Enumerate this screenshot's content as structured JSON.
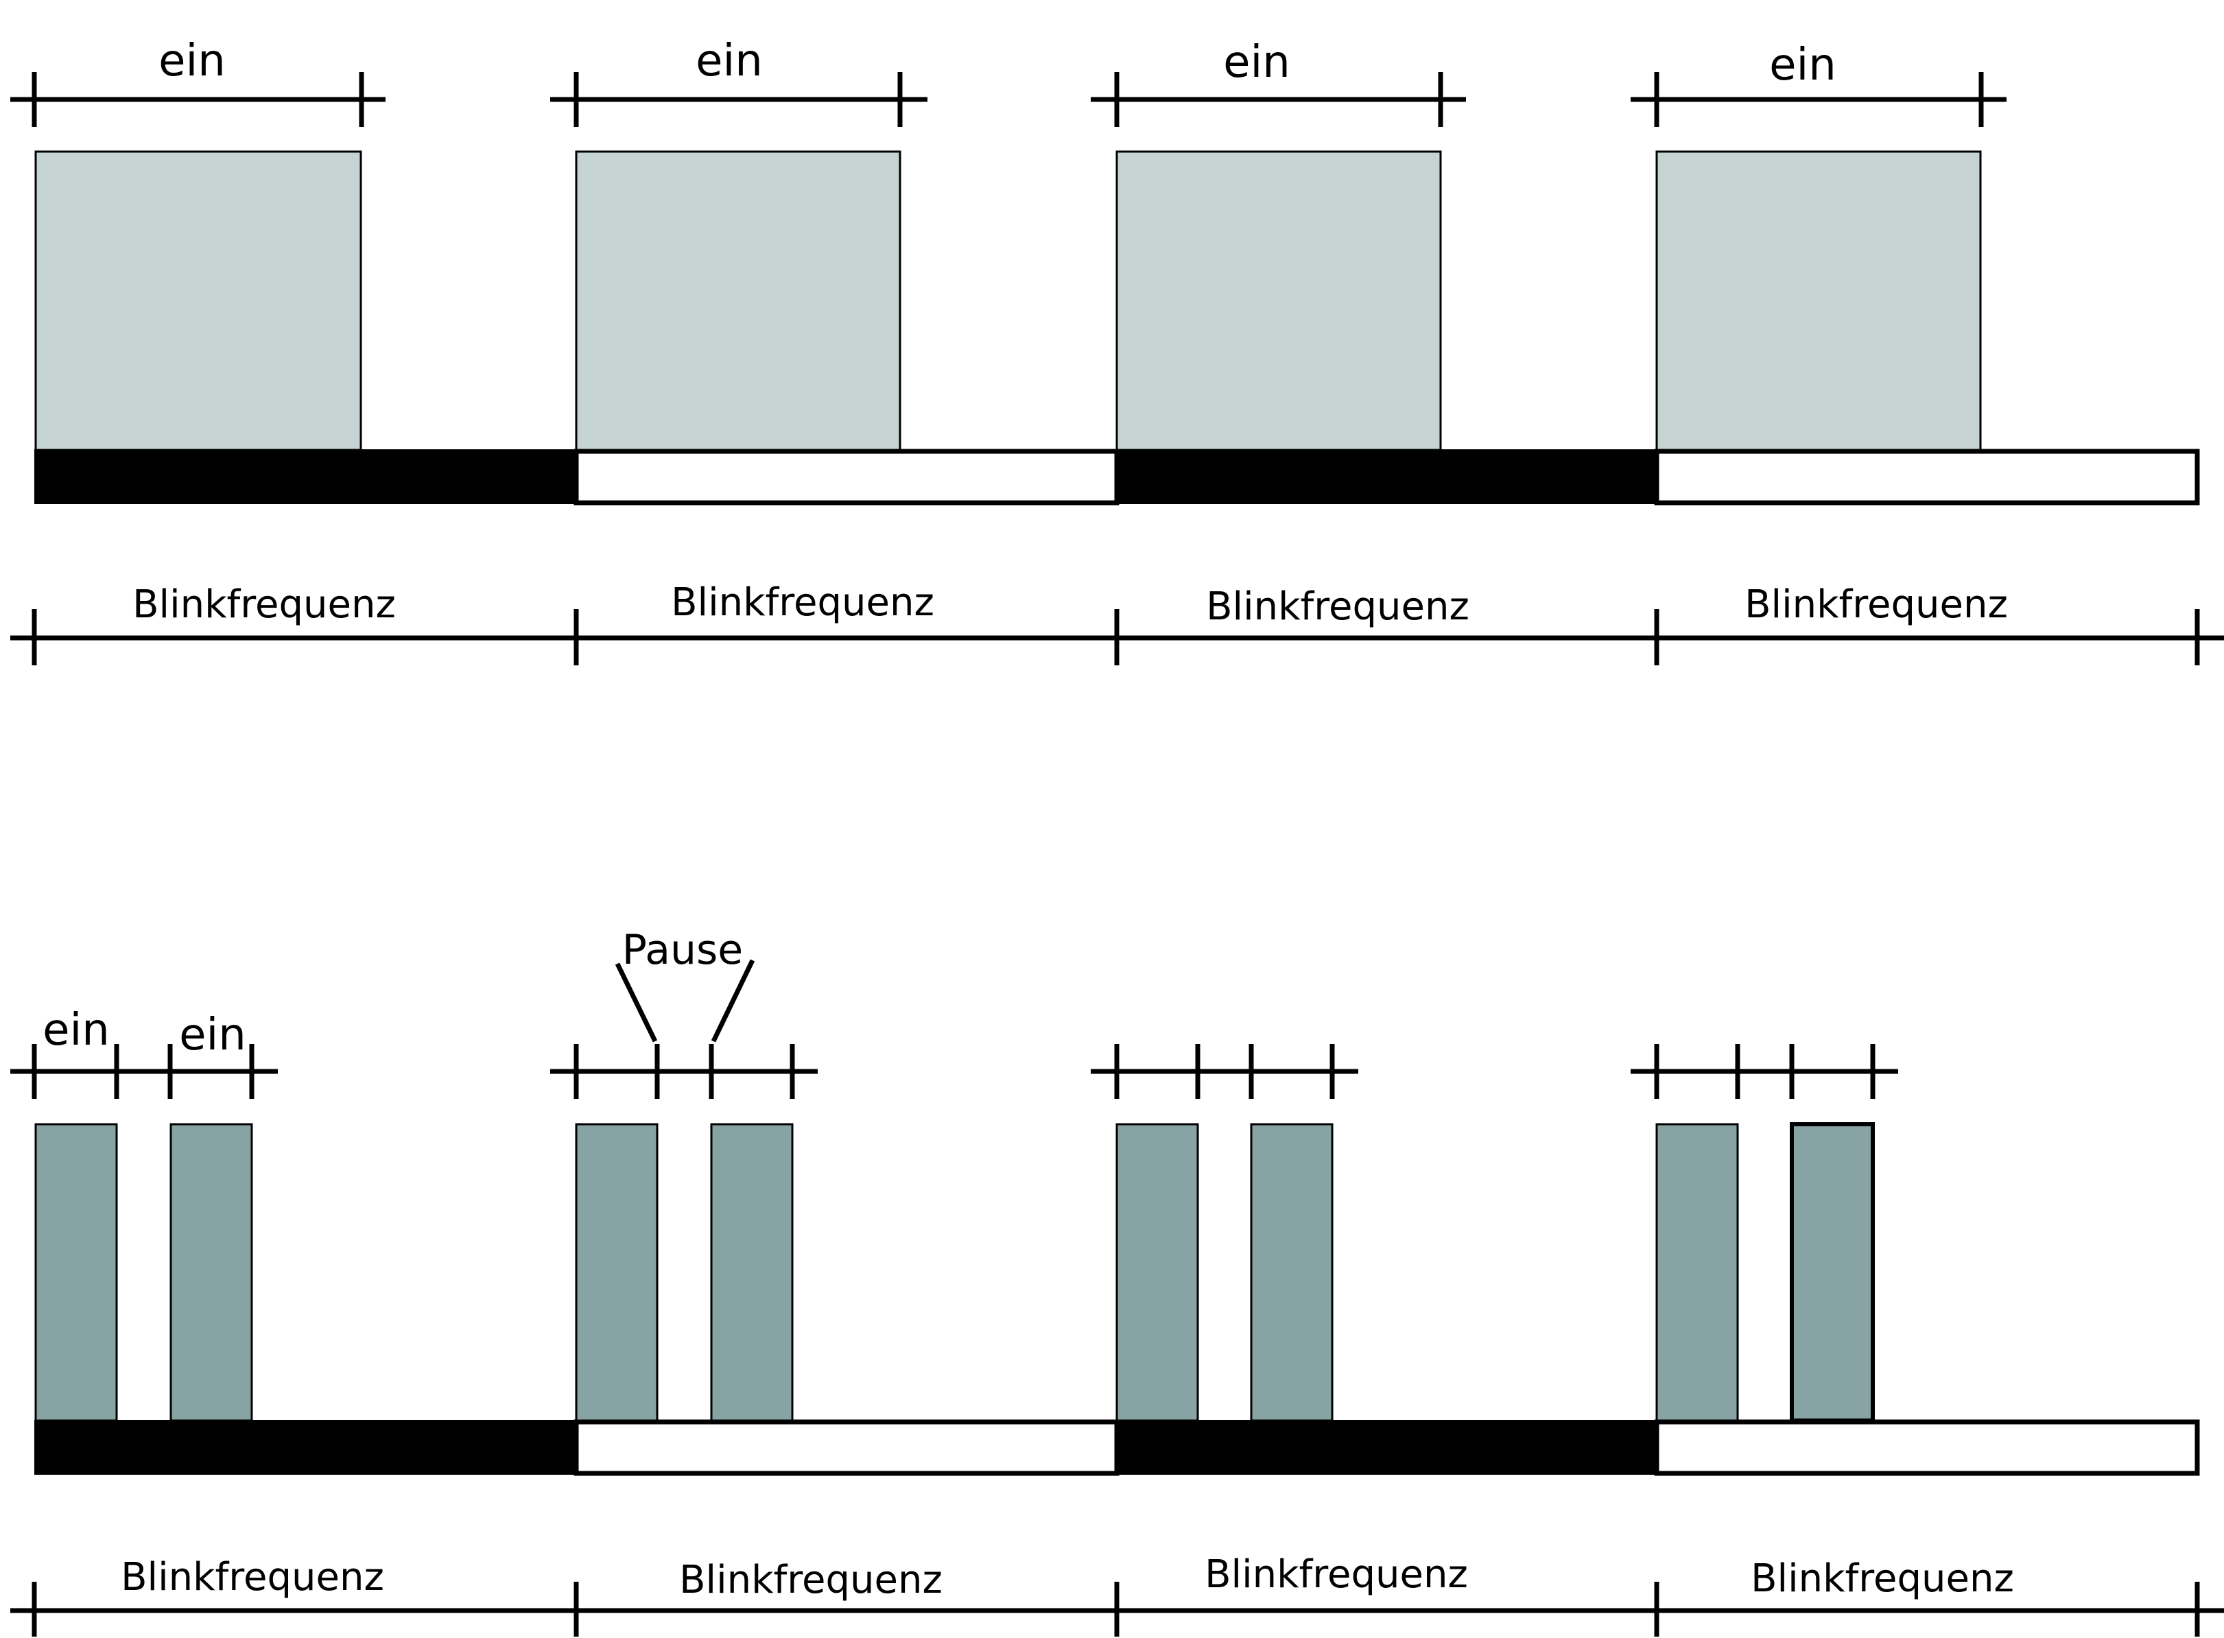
{
  "colors": {
    "background": "#ffffff",
    "pulse_long": "#c5d3d3",
    "pulse_short": "#87a3a4",
    "bar_dark": "#000000",
    "bar_light": "#ffffff",
    "line": "#000000"
  },
  "top": {
    "on_label": "ein",
    "frequency_label": "Blinkfrequenz",
    "bar_segments": [
      "dark",
      "light",
      "dark",
      "light"
    ]
  },
  "bottom": {
    "on_label": "ein",
    "pause_label": "Pause",
    "frequency_label": "Blinkfrequenz",
    "bar_segments": [
      "dark",
      "light",
      "dark",
      "light"
    ]
  }
}
